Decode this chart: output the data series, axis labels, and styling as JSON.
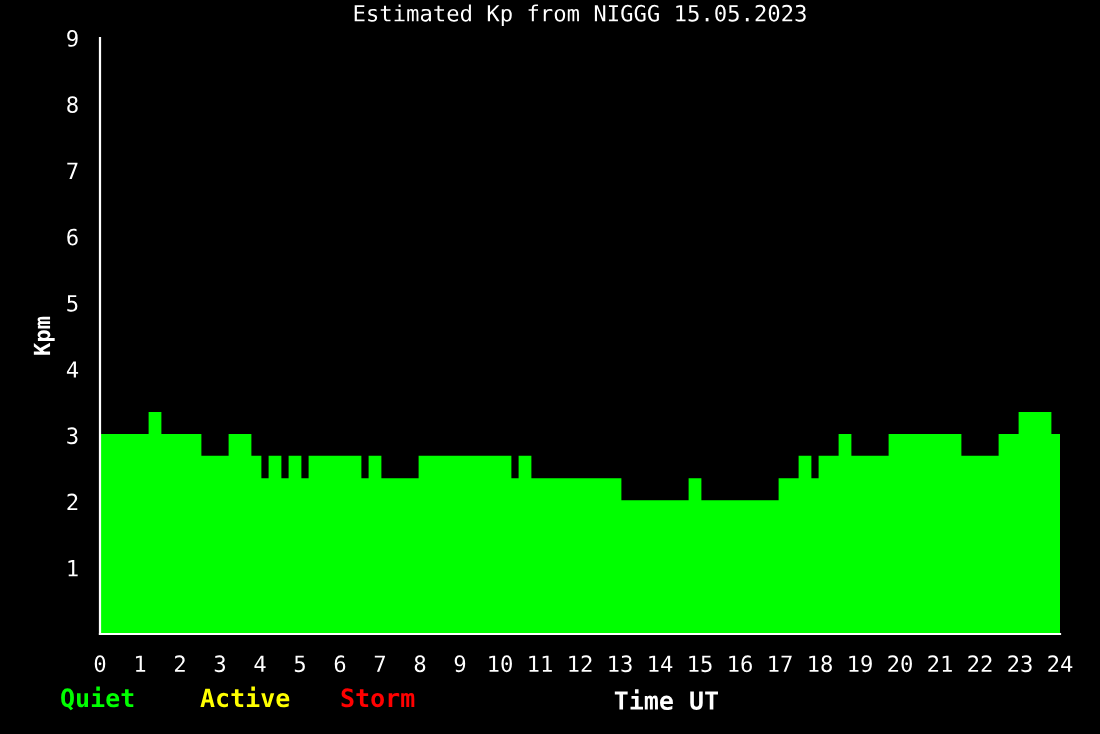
{
  "chart_data": {
    "type": "area",
    "title": "Estimated Kp from NIGGG 15.05.2023",
    "xlabel": "Time UT",
    "ylabel": "Kpm",
    "x": [
      0.125,
      0.375,
      0.625,
      0.875,
      1.125,
      1.375,
      1.625,
      1.875,
      2.125,
      2.375,
      2.625,
      2.875,
      3.125,
      3.375,
      3.625,
      3.875,
      4.125,
      4.375,
      4.625,
      4.875,
      5.125,
      5.375,
      5.625,
      5.875,
      6.125,
      6.375,
      6.625,
      6.875,
      7.125,
      7.375,
      7.625,
      7.875,
      8.125,
      8.375,
      8.625,
      8.875,
      9.125,
      9.375,
      9.625,
      9.875,
      10.125,
      10.375,
      10.625,
      10.875,
      11.125,
      11.375,
      11.625,
      11.875,
      12.125,
      12.375,
      12.625,
      12.875,
      13.125,
      13.375,
      13.625,
      13.875,
      14.125,
      14.375,
      14.625,
      14.875,
      15.125,
      15.375,
      15.625,
      15.875,
      16.125,
      16.375,
      16.625,
      16.875,
      17.125,
      17.375,
      17.625,
      17.875,
      18.125,
      18.375,
      18.625,
      18.875,
      19.125,
      19.375,
      19.625,
      19.875,
      20.125,
      20.375,
      20.625,
      20.875,
      21.125,
      21.375,
      21.625,
      21.875,
      22.125,
      22.375,
      22.625,
      22.875,
      23.125,
      23.375,
      23.625,
      23.875
    ],
    "series": [
      {
        "name": "Quiet",
        "color": "#00ff00",
        "values": [
          3,
          3,
          3,
          3,
          3,
          3.33,
          3,
          3,
          3,
          3,
          2.67,
          2.67,
          2.67,
          3,
          3,
          2.67,
          2.33,
          2.67,
          2.33,
          2.67,
          2.33,
          2.67,
          2.67,
          2.67,
          2.67,
          2.67,
          2.33,
          2.67,
          2.33,
          2.33,
          2.33,
          2.33,
          2.67,
          2.67,
          2.67,
          2.67,
          2.67,
          2.67,
          2.67,
          2.67,
          2.67,
          2.33,
          2.67,
          2.33,
          2.33,
          2.33,
          2.33,
          2.33,
          2.33,
          2.33,
          2.33,
          2.33,
          2,
          2,
          2,
          2,
          2,
          2,
          2,
          2.33,
          2,
          2,
          2,
          2,
          2,
          2,
          2,
          2,
          2.33,
          2.33,
          2.67,
          2.33,
          2.67,
          2.67,
          3,
          2.67,
          2.67,
          2.67,
          2.67,
          3,
          3,
          3,
          3,
          3,
          3,
          3,
          2.67,
          2.67,
          2.67,
          2.67,
          3,
          3,
          3.33,
          3.33,
          3.33,
          3
        ]
      },
      {
        "name": "Active",
        "color": "#ffff00",
        "values": [
          null,
          null,
          null,
          null,
          null,
          null,
          null,
          null,
          null,
          null,
          null,
          null,
          null,
          null,
          null,
          null,
          null,
          null,
          null,
          null,
          null,
          null,
          null,
          null,
          null,
          null,
          null,
          null,
          null,
          null,
          null,
          null,
          null,
          null,
          null,
          null,
          null,
          null,
          null,
          null,
          null,
          null,
          null,
          null,
          null,
          null,
          null,
          null,
          null,
          null,
          null,
          null,
          null,
          null,
          null,
          null,
          null,
          null,
          null,
          null,
          null,
          null,
          null,
          null,
          null,
          null,
          null,
          null,
          null,
          null,
          null,
          null,
          null,
          null,
          null,
          null,
          null,
          null,
          null,
          null,
          null,
          null,
          null,
          null,
          null,
          null,
          null,
          null,
          null,
          null,
          null,
          null,
          null,
          null,
          null,
          null
        ]
      },
      {
        "name": "Storm",
        "color": "#ff0000",
        "values": [
          null,
          null,
          null,
          null,
          null,
          null,
          null,
          null,
          null,
          null,
          null,
          null,
          null,
          null,
          null,
          null,
          null,
          null,
          null,
          null,
          null,
          null,
          null,
          null,
          null,
          null,
          null,
          null,
          null,
          null,
          null,
          null,
          null,
          null,
          null,
          null,
          null,
          null,
          null,
          null,
          null,
          null,
          null,
          null,
          null,
          null,
          null,
          null,
          null,
          null,
          null,
          null,
          null,
          null,
          null,
          null,
          null,
          null,
          null,
          null,
          null,
          null,
          null,
          null,
          null,
          null,
          null,
          null,
          null,
          null,
          null,
          null,
          null,
          null,
          null,
          null,
          null,
          null,
          null,
          null,
          null,
          null,
          null,
          null,
          null,
          null,
          null,
          null,
          null,
          null,
          null,
          null,
          null,
          null,
          null,
          null
        ]
      }
    ],
    "xlim": [
      0,
      24
    ],
    "xticks": [
      0,
      1,
      2,
      3,
      4,
      5,
      6,
      7,
      8,
      9,
      10,
      11,
      12,
      13,
      14,
      15,
      16,
      17,
      18,
      19,
      20,
      21,
      22,
      23,
      24
    ],
    "ylim": [
      0,
      9
    ],
    "yticks": [
      1,
      2,
      3,
      4,
      5,
      6,
      7,
      8,
      9
    ],
    "grid": false
  }
}
